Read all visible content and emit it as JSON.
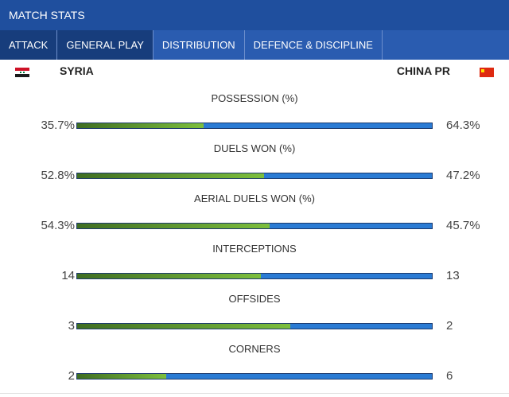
{
  "header": {
    "title": "MATCH STATS"
  },
  "tabs": [
    {
      "label": "ATTACK"
    },
    {
      "label": "GENERAL PLAY"
    },
    {
      "label": "DISTRIBUTION"
    },
    {
      "label": "DEFENCE & DISCIPLINE"
    }
  ],
  "teams": {
    "home": "SYRIA",
    "away": "CHINA PR"
  },
  "stats": [
    {
      "label": "POSSESSION (%)",
      "home": "35.7%",
      "away": "64.3%",
      "home_share": 0.357
    },
    {
      "label": "DUELS WON (%)",
      "home": "52.8%",
      "away": "47.2%",
      "home_share": 0.528
    },
    {
      "label": "AERIAL DUELS WON (%)",
      "home": "54.3%",
      "away": "45.7%",
      "home_share": 0.543
    },
    {
      "label": "INTERCEPTIONS",
      "home": "14",
      "away": "13",
      "home_share": 0.519
    },
    {
      "label": "OFFSIDES",
      "home": "3",
      "away": "2",
      "home_share": 0.6
    },
    {
      "label": "CORNERS",
      "home": "2",
      "away": "6",
      "home_share": 0.25
    }
  ],
  "colors": {
    "header": "#1f4f9e",
    "tabs": "#2a5cb0",
    "active_tab": "#173d7c",
    "home_bar": "#7cbf3d",
    "away_bar": "#2a7bd4"
  }
}
